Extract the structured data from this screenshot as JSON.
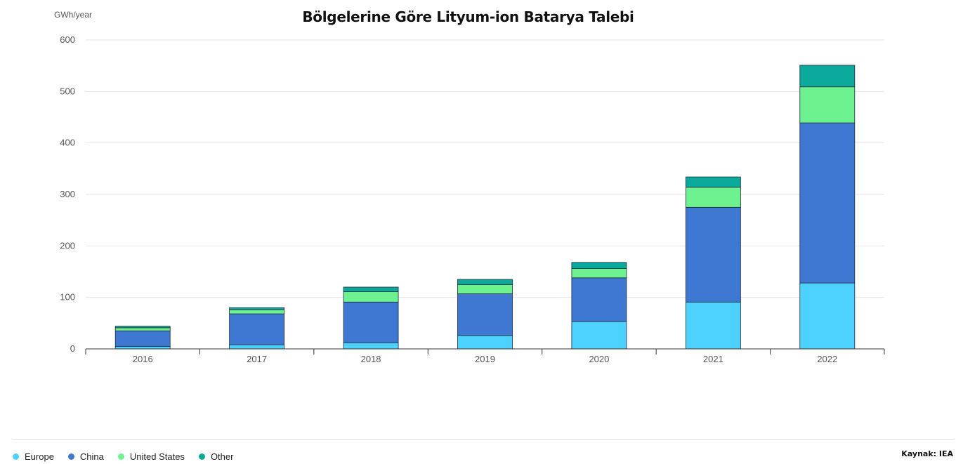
{
  "chart_data": {
    "type": "bar",
    "stacked": true,
    "title": "Bölgelerine Göre Lityum-ion Batarya Talebi",
    "unit_label": "GWh/year",
    "categories": [
      "2016",
      "2017",
      "2018",
      "2019",
      "2020",
      "2021",
      "2022"
    ],
    "series": [
      {
        "name": "Europe",
        "color": "#4dd2ff",
        "values": [
          5,
          8,
          12,
          26,
          53,
          91,
          128
        ]
      },
      {
        "name": "China",
        "color": "#3e78d3",
        "values": [
          30,
          60,
          79,
          81,
          85,
          184,
          311
        ]
      },
      {
        "name": "United States",
        "color": "#6df28f",
        "values": [
          6,
          8,
          20,
          18,
          18,
          39,
          70
        ]
      },
      {
        "name": "Other",
        "color": "#0aa99c",
        "values": [
          3,
          4,
          9,
          10,
          12,
          20,
          42
        ]
      }
    ],
    "ylim": [
      0,
      600
    ],
    "yticks": [
      0,
      100,
      200,
      300,
      400,
      500,
      600
    ],
    "grid": true,
    "legend_position": "bottom-left"
  },
  "source": "Kaynak: IEA"
}
